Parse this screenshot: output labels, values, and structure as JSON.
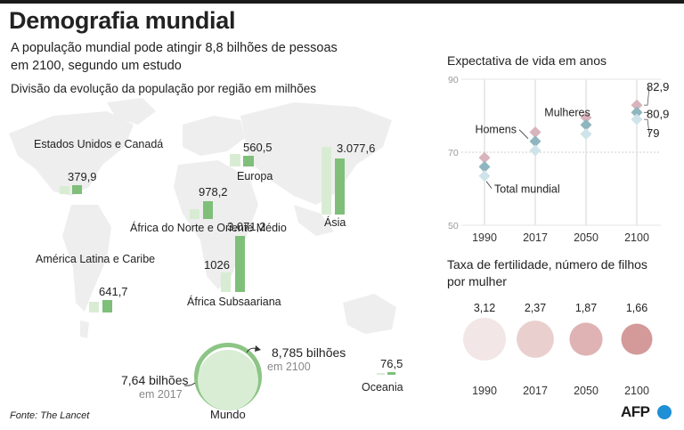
{
  "header": {
    "title": "Demografia mundial",
    "subtitle": "A população mundial pode atingir 8,8 bilhões de pessoas em 2100, segundo um estudo",
    "map_caption": "Divisão da evolução da população por região em milhões"
  },
  "regions": [
    {
      "id": "usa",
      "name": "Estados Unidos e Canadá",
      "value_2100": "379,9"
    },
    {
      "id": "europe",
      "name": "Europa",
      "value_2100": "560,5"
    },
    {
      "id": "nafrica",
      "name": "África do Norte e Oriente Médio",
      "value_2100": "978,2"
    },
    {
      "id": "ssafrica",
      "name": "África Subsaariana",
      "value_2017": "1026",
      "value_2100": "3.071,2"
    },
    {
      "id": "asia",
      "name": "Ásia",
      "value_2100": "3.077,6"
    },
    {
      "id": "latam",
      "name": "América Latina e Caribe",
      "value_2100": "641,7"
    },
    {
      "id": "oceania",
      "name": "Oceania",
      "value_2100": "76,5"
    }
  ],
  "world": {
    "name": "Mundo",
    "v2017": "7,64 bilhões",
    "y2017": "em 2017",
    "v2100": "8,785 bilhões",
    "y2100": "em 2100"
  },
  "source": "Fonte: The Lancet",
  "credit": "AFP",
  "colors": {
    "bar_2017": "#d8ecd3",
    "bar_2100": "#7fbf7a",
    "map": "#eeeeee",
    "women": "#d9b4bd",
    "men": "#8fb6bf",
    "total": "#cfe3ea"
  },
  "chart_data": [
    {
      "type": "scatter",
      "title": "Expectativa de vida em anos",
      "x": [
        "1990",
        "2017",
        "2050",
        "2100"
      ],
      "ylim": [
        50,
        90
      ],
      "yticks": [
        "50",
        "70",
        "90"
      ],
      "series": [
        {
          "name": "Mulheres",
          "values": [
            68.5,
            75.5,
            79.5,
            82.9
          ]
        },
        {
          "name": "Homens",
          "values": [
            66,
            73,
            77.5,
            80.9
          ]
        },
        {
          "name": "Total mundial",
          "values": [
            63.5,
            70.5,
            75,
            79
          ]
        }
      ],
      "value_labels": [
        "82,9",
        "80,9",
        "79"
      ],
      "grid": true
    },
    {
      "type": "bubble",
      "title": "Taxa de fertilidade, número de filhos por mulher",
      "categories": [
        "1990",
        "2017",
        "2050",
        "2100"
      ],
      "values": [
        3.12,
        2.37,
        1.87,
        1.66
      ],
      "labels": [
        "3,12",
        "2,37",
        "1,87",
        "1,66"
      ],
      "colors": [
        "#f2e6e6",
        "#e9d0cf",
        "#dfb3b3",
        "#d49a9a"
      ]
    }
  ]
}
